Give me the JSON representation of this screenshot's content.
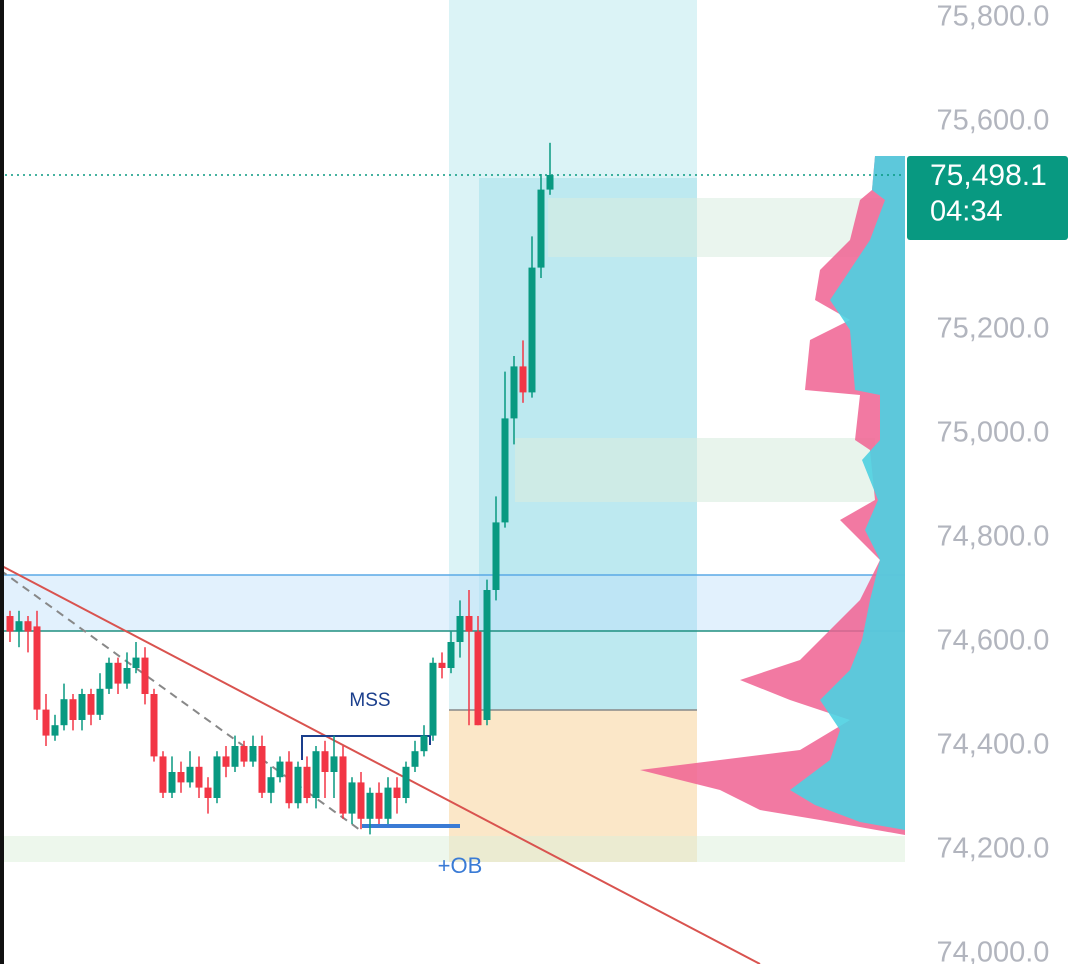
{
  "chart_data": {
    "type": "candlestick",
    "ylim": [
      74000,
      75800
    ],
    "yticks": [
      {
        "value": 74000,
        "label": "74,000.0"
      },
      {
        "value": 74200,
        "label": "74,200.0"
      },
      {
        "value": 74400,
        "label": "74,400.0"
      },
      {
        "value": 74600,
        "label": "74,600.0"
      },
      {
        "value": 74800,
        "label": "74,800.0"
      },
      {
        "value": 75000,
        "label": "75,000.0"
      },
      {
        "value": 75200,
        "label": "75,200.0"
      },
      {
        "value": 75600,
        "label": "75,600.0"
      },
      {
        "value": 75800,
        "label": "75,800.0"
      }
    ],
    "last_price": {
      "value": 75498.1,
      "label": "75,498.1"
    },
    "countdown": "04:34",
    "up_color": "#089981",
    "down_color": "#f23645",
    "annotations": [
      "MSS",
      "+OB"
    ],
    "series": {
      "open": [
        74650,
        74620,
        74640,
        74630,
        74470,
        74420,
        74440,
        74490,
        74450,
        74500,
        74460,
        74510,
        74560,
        74520,
        74550,
        74570,
        74500,
        74380,
        74310,
        74350,
        74330,
        74360,
        74320,
        74300,
        74380,
        74360,
        74400,
        74370,
        74400,
        74310,
        74340,
        74370,
        74290,
        74360,
        74300,
        74390,
        74350,
        74380,
        74270,
        74330,
        74260,
        74310,
        74260,
        74320,
        74300,
        74360,
        74390,
        74420,
        74560,
        74550,
        74600,
        74650,
        74620,
        74450,
        74700,
        74830,
        75030,
        75130,
        75080,
        75320,
        75470
      ],
      "high": [
        74660,
        74660,
        74650,
        74660,
        74500,
        74460,
        74520,
        74500,
        74510,
        74510,
        74540,
        74570,
        74570,
        74580,
        74600,
        74590,
        74510,
        74390,
        74380,
        74370,
        74390,
        74380,
        74340,
        74390,
        74400,
        74420,
        74410,
        74420,
        74420,
        74360,
        74380,
        74390,
        74370,
        74380,
        74400,
        74410,
        74420,
        74400,
        74340,
        74350,
        74320,
        74330,
        74340,
        74340,
        74370,
        74410,
        74440,
        74570,
        74580,
        74620,
        74680,
        74700,
        74650,
        74720,
        74880,
        75120,
        75150,
        75180,
        75380,
        75500,
        75560
      ],
      "low": [
        74600,
        74590,
        74580,
        74450,
        74400,
        74410,
        74430,
        74430,
        74430,
        74440,
        74450,
        74500,
        74500,
        74510,
        74540,
        74480,
        74370,
        74300,
        74300,
        74310,
        74320,
        74300,
        74270,
        74290,
        74340,
        74350,
        74360,
        74360,
        74300,
        74290,
        74330,
        74280,
        74280,
        74290,
        74280,
        74300,
        74300,
        74260,
        74250,
        74240,
        74230,
        74250,
        74250,
        74270,
        74290,
        74350,
        74380,
        74410,
        74530,
        74540,
        74570,
        74440,
        74440,
        74440,
        74680,
        74820,
        74980,
        75060,
        75070,
        75300,
        75460
      ],
      "close": [
        74620,
        74640,
        74620,
        74470,
        74420,
        74440,
        74490,
        74450,
        74500,
        74460,
        74510,
        74560,
        74520,
        74550,
        74570,
        74500,
        74380,
        74310,
        74350,
        74330,
        74360,
        74320,
        74300,
        74380,
        74360,
        74400,
        74370,
        74400,
        74310,
        74340,
        74370,
        74290,
        74360,
        74300,
        74390,
        74350,
        74380,
        74270,
        74330,
        74260,
        74310,
        74260,
        74320,
        74300,
        74360,
        74390,
        74420,
        74560,
        74550,
        74600,
        74650,
        74620,
        74440,
        74700,
        74830,
        75030,
        75130,
        75080,
        75320,
        75470,
        75498.1
      ]
    }
  }
}
